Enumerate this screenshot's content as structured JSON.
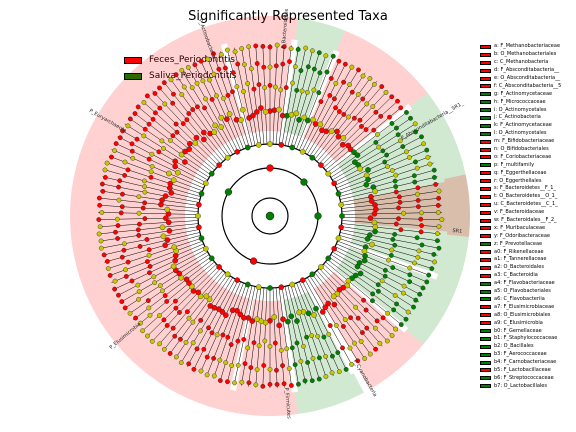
{
  "chart_data": {
    "type": "cladogram",
    "title": "Significantly Represented Taxa",
    "classes": [
      {
        "name": "Feces_Periodontitis",
        "color": "#ff0000"
      },
      {
        "name": "Saliva_Periodontitis",
        "color": "#008000"
      }
    ],
    "biomarkers": [
      {
        "label": "a: F_Methanobacteriaceae",
        "class": "Feces_Periodontitis"
      },
      {
        "label": "b: O_Methanobacteriales",
        "class": "Feces_Periodontitis"
      },
      {
        "label": "c: C_Methanobacteria",
        "class": "Feces_Periodontitis"
      },
      {
        "label": "d: F_Absconditabacteria__",
        "class": "Feces_Periodontitis"
      },
      {
        "label": "e: O_Absconditabacteria__",
        "class": "Feces_Periodontitis"
      },
      {
        "label": "f: C_Absconditabacteria__5",
        "class": "Feces_Periodontitis"
      },
      {
        "label": "g: F_Actinomycetaceae",
        "class": "Saliva_Periodontitis"
      },
      {
        "label": "h: F_Micrococcaceae",
        "class": "Saliva_Periodontitis"
      },
      {
        "label": "i: O_Actinomycetales",
        "class": "Saliva_Periodontitis"
      },
      {
        "label": "j: C_Actinobacteria",
        "class": "Saliva_Periodontitis"
      },
      {
        "label": "k: F_Actinomycetaceae",
        "class": "Saliva_Periodontitis"
      },
      {
        "label": "l: O_Actinomycetales",
        "class": "Saliva_Periodontitis"
      },
      {
        "label": "m: F_Bifidobacteriaceae",
        "class": "Feces_Periodontitis"
      },
      {
        "label": "n: O_Bifidobacteriales",
        "class": "Feces_Periodontitis"
      },
      {
        "label": "o: F_Coriobacteriaceae",
        "class": "Feces_Periodontitis"
      },
      {
        "label": "p: F_multifamily",
        "class": "Saliva_Periodontitis"
      },
      {
        "label": "q: F_Eggerthellaceae",
        "class": "Feces_Periodontitis"
      },
      {
        "label": "r: O_Eggerthellales",
        "class": "Feces_Periodontitis"
      },
      {
        "label": "s: F_Bacteroidetes__F_1_",
        "class": "Feces_Periodontitis"
      },
      {
        "label": "t: O_Bacteroidetes__O_1_",
        "class": "Feces_Periodontitis"
      },
      {
        "label": "u: C_Bacteroidetes__C_1_",
        "class": "Feces_Periodontitis"
      },
      {
        "label": "v: F_Bacteroidaceae",
        "class": "Feces_Periodontitis"
      },
      {
        "label": "w: F_Bacteroidales__F_2_",
        "class": "Feces_Periodontitis"
      },
      {
        "label": "x: F_Muribaculaceae",
        "class": "Feces_Periodontitis"
      },
      {
        "label": "y: F_Odoribacteraceae",
        "class": "Feces_Periodontitis"
      },
      {
        "label": "z: F_Prevotellaceae",
        "class": "Saliva_Periodontitis"
      },
      {
        "label": "a0: F_Rikenellaceae",
        "class": "Feces_Periodontitis"
      },
      {
        "label": "a1: F_Tannerellaceae",
        "class": "Feces_Periodontitis"
      },
      {
        "label": "a2: O_Bacteroidales",
        "class": "Feces_Periodontitis"
      },
      {
        "label": "a3: C_Bacteroidia",
        "class": "Feces_Periodontitis"
      },
      {
        "label": "a4: F_Flavobacteriaceae",
        "class": "Saliva_Periodontitis"
      },
      {
        "label": "a5: O_Flavobacteriales",
        "class": "Saliva_Periodontitis"
      },
      {
        "label": "a6: C_Flavobacteriia",
        "class": "Saliva_Periodontitis"
      },
      {
        "label": "a7: F_Elusimicrobiaceae",
        "class": "Feces_Periodontitis"
      },
      {
        "label": "a8: O_Elusimicrobiales",
        "class": "Feces_Periodontitis"
      },
      {
        "label": "a9: C_Elusimicrobia",
        "class": "Feces_Periodontitis"
      },
      {
        "label": "b0: F_Gemellaceae",
        "class": "Saliva_Periodontitis"
      },
      {
        "label": "b1: F_Staphylococcaceae",
        "class": "Saliva_Periodontitis"
      },
      {
        "label": "b2: O_Bacillales",
        "class": "Saliva_Periodontitis"
      },
      {
        "label": "b3: F_Aerococcaceae",
        "class": "Saliva_Periodontitis"
      },
      {
        "label": "b4: F_Carnobacteriaceae",
        "class": "Saliva_Periodontitis"
      },
      {
        "label": "b5: F_Lactobacillaceae",
        "class": "Feces_Periodontitis"
      },
      {
        "label": "b6: F_Streptococcaceae",
        "class": "Saliva_Periodontitis"
      },
      {
        "label": "b7: O_Lactobacillales",
        "class": "Saliva_Periodontitis"
      }
    ],
    "ring_labels": [
      {
        "text": "P_Actinobacteria"
      },
      {
        "text": "P_Bacteroidetes"
      },
      {
        "text": "P_Absconditabacteria__SR1_"
      },
      {
        "text": "P_Euryarchaeota"
      },
      {
        "text": "P_Cyanobacteria"
      },
      {
        "text": "P_Firmicutes"
      },
      {
        "text": "P_Elusimicrobia"
      },
      {
        "text": "SR1"
      }
    ]
  }
}
